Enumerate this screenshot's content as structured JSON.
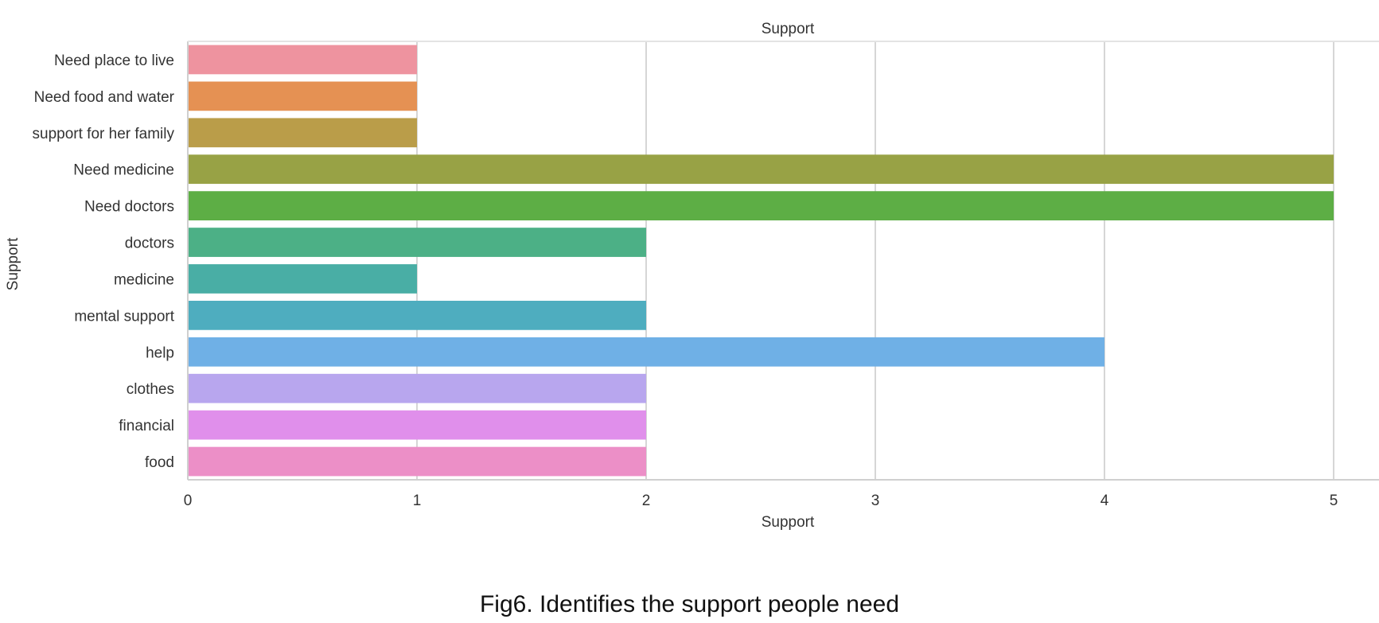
{
  "chart_data": {
    "type": "bar",
    "orientation": "horizontal",
    "title": "Support",
    "xlabel": "Support",
    "ylabel": "Support",
    "categories": [
      "Need place to live",
      "Need food and water",
      "support for her family",
      "Need medicine",
      "Need doctors",
      "doctors",
      "medicine",
      "mental support",
      "help",
      "clothes",
      "financial",
      "food"
    ],
    "values": [
      1,
      1,
      1,
      5,
      5,
      2,
      1,
      2,
      4,
      2,
      2,
      2
    ],
    "colors": [
      "#ee939f",
      "#e59153",
      "#ba9d49",
      "#98a245",
      "#5dae45",
      "#4cb086",
      "#49aea5",
      "#4eadbf",
      "#6fb0e6",
      "#b8a6ee",
      "#e08feb",
      "#ec8fc7"
    ],
    "xticks": [
      0,
      1,
      2,
      3,
      4,
      5
    ],
    "xlim": [
      0,
      5.2
    ],
    "grid": true
  },
  "caption": "Fig6. Identifies the support people need"
}
